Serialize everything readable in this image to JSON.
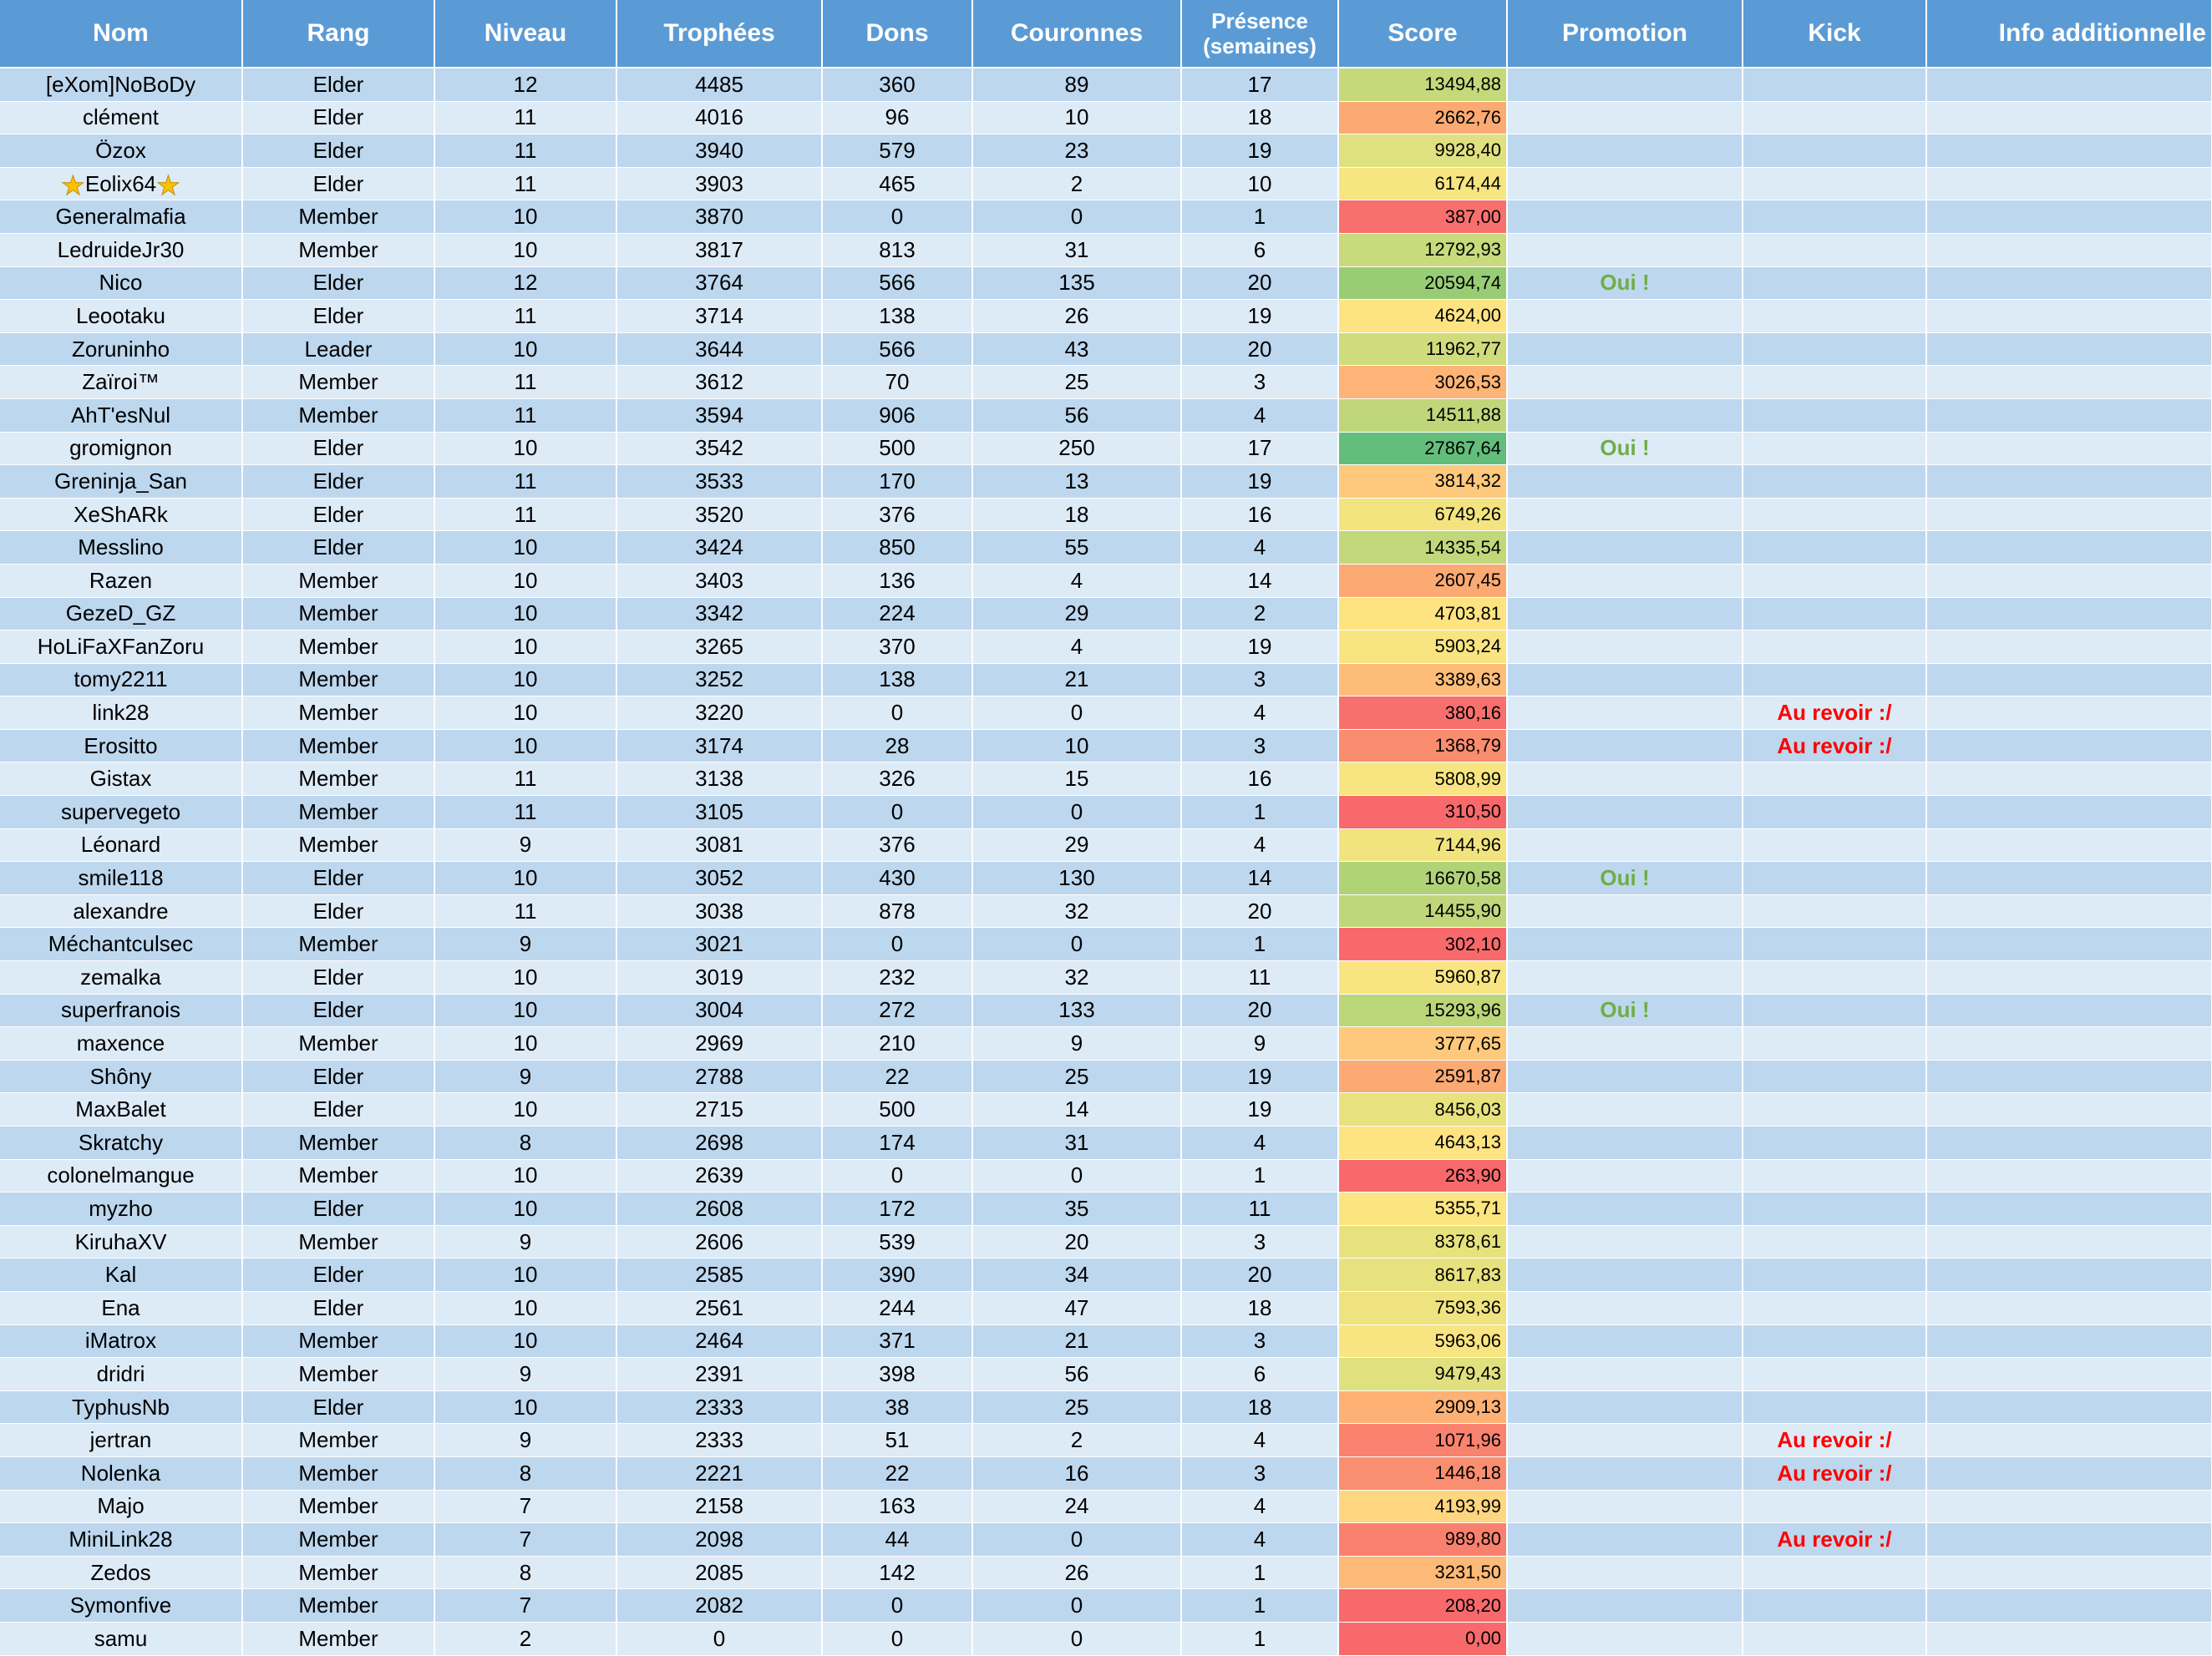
{
  "headers": {
    "nom": "Nom",
    "rang": "Rang",
    "niveau": "Niveau",
    "trophees": "Trophées",
    "dons": "Dons",
    "couronnes": "Couronnes",
    "presence": "Présence",
    "presence_sub": "(semaines)",
    "score": "Score",
    "promotion": "Promotion",
    "kick": "Kick",
    "info": "Info additionnelle"
  },
  "rows": [
    {
      "nom": "[eXom]NoBoDy",
      "rang": "Elder",
      "niveau": "12",
      "trophees": "4485",
      "dons": "360",
      "couronnes": "89",
      "presence": "17",
      "score": "13494,88",
      "score_color": "#c5d97a",
      "promotion": "",
      "kick": ""
    },
    {
      "nom": "clément",
      "rang": "Elder",
      "niveau": "11",
      "trophees": "4016",
      "dons": "96",
      "couronnes": "10",
      "presence": "18",
      "score": "2662,76",
      "score_color": "#fcaa73",
      "promotion": "",
      "kick": ""
    },
    {
      "nom": "Özox",
      "rang": "Elder",
      "niveau": "11",
      "trophees": "3940",
      "dons": "579",
      "couronnes": "23",
      "presence": "19",
      "score": "9928,40",
      "score_color": "#dfe07f",
      "promotion": "",
      "kick": ""
    },
    {
      "nom": "Eolix64",
      "star": true,
      "rang": "Elder",
      "niveau": "11",
      "trophees": "3903",
      "dons": "465",
      "couronnes": "2",
      "presence": "10",
      "score": "6174,44",
      "score_color": "#f6e580",
      "promotion": "",
      "kick": ""
    },
    {
      "nom": "Generalmafia",
      "rang": "Member",
      "niveau": "10",
      "trophees": "3870",
      "dons": "0",
      "couronnes": "0",
      "presence": "1",
      "score": "387,00",
      "score_color": "#f8706d",
      "promotion": "",
      "kick": ""
    },
    {
      "nom": "LedruideJr30",
      "rang": "Member",
      "niveau": "10",
      "trophees": "3817",
      "dons": "813",
      "couronnes": "31",
      "presence": "6",
      "score": "12792,93",
      "score_color": "#c8da7b",
      "promotion": "",
      "kick": ""
    },
    {
      "nom": "Nico",
      "rang": "Elder",
      "niveau": "12",
      "trophees": "3764",
      "dons": "566",
      "couronnes": "135",
      "presence": "20",
      "score": "20594,74",
      "score_color": "#98cd76",
      "promotion": "Oui !",
      "kick": ""
    },
    {
      "nom": "Leootaku",
      "rang": "Elder",
      "niveau": "11",
      "trophees": "3714",
      "dons": "138",
      "couronnes": "26",
      "presence": "19",
      "score": "4624,00",
      "score_color": "#fee382",
      "promotion": "",
      "kick": ""
    },
    {
      "nom": "Zoruninho",
      "rang": "Leader",
      "niveau": "10",
      "trophees": "3644",
      "dons": "566",
      "couronnes": "43",
      "presence": "20",
      "score": "11962,77",
      "score_color": "#cfdc7c",
      "promotion": "",
      "kick": ""
    },
    {
      "nom": "Zaïroi™",
      "rang": "Member",
      "niveau": "11",
      "trophees": "3612",
      "dons": "70",
      "couronnes": "25",
      "presence": "3",
      "score": "3026,53",
      "score_color": "#fdb476",
      "promotion": "",
      "kick": ""
    },
    {
      "nom": "AhT'esNul",
      "rang": "Member",
      "niveau": "11",
      "trophees": "3594",
      "dons": "906",
      "couronnes": "56",
      "presence": "4",
      "score": "14511,88",
      "score_color": "#bfd77a",
      "promotion": "",
      "kick": ""
    },
    {
      "nom": "gromignon",
      "rang": "Elder",
      "niveau": "10",
      "trophees": "3542",
      "dons": "500",
      "couronnes": "250",
      "presence": "17",
      "score": "27867,64",
      "score_color": "#63be7b",
      "promotion": "Oui !",
      "kick": ""
    },
    {
      "nom": "Greninja_San",
      "rang": "Elder",
      "niveau": "11",
      "trophees": "3533",
      "dons": "170",
      "couronnes": "13",
      "presence": "19",
      "score": "3814,32",
      "score_color": "#fec97c",
      "promotion": "",
      "kick": ""
    },
    {
      "nom": "XeShARk",
      "rang": "Elder",
      "niveau": "11",
      "trophees": "3520",
      "dons": "376",
      "couronnes": "18",
      "presence": "16",
      "score": "6749,26",
      "score_color": "#f3e47f",
      "promotion": "",
      "kick": ""
    },
    {
      "nom": "Messlino",
      "rang": "Elder",
      "niveau": "10",
      "trophees": "3424",
      "dons": "850",
      "couronnes": "55",
      "presence": "4",
      "score": "14335,54",
      "score_color": "#c0d87a",
      "promotion": "",
      "kick": ""
    },
    {
      "nom": "Razen",
      "rang": "Member",
      "niveau": "10",
      "trophees": "3403",
      "dons": "136",
      "couronnes": "4",
      "presence": "14",
      "score": "2607,45",
      "score_color": "#fcaa73",
      "promotion": "",
      "kick": ""
    },
    {
      "nom": "GezeD_GZ",
      "rang": "Member",
      "niveau": "10",
      "trophees": "3342",
      "dons": "224",
      "couronnes": "29",
      "presence": "2",
      "score": "4703,81",
      "score_color": "#fee382",
      "promotion": "",
      "kick": ""
    },
    {
      "nom": "HoLiFaXFanZoru",
      "rang": "Member",
      "niveau": "10",
      "trophees": "3265",
      "dons": "370",
      "couronnes": "4",
      "presence": "19",
      "score": "5903,24",
      "score_color": "#f8e581",
      "promotion": "",
      "kick": ""
    },
    {
      "nom": "tomy2211",
      "rang": "Member",
      "niveau": "10",
      "trophees": "3252",
      "dons": "138",
      "couronnes": "21",
      "presence": "3",
      "score": "3389,63",
      "score_color": "#fdbd78",
      "promotion": "",
      "kick": ""
    },
    {
      "nom": "link28",
      "rang": "Member",
      "niveau": "10",
      "trophees": "3220",
      "dons": "0",
      "couronnes": "0",
      "presence": "4",
      "score": "380,16",
      "score_color": "#f8706d",
      "promotion": "",
      "kick": "Au revoir :/"
    },
    {
      "nom": "Erositto",
      "rang": "Member",
      "niveau": "10",
      "trophees": "3174",
      "dons": "28",
      "couronnes": "10",
      "presence": "3",
      "score": "1368,79",
      "score_color": "#fa8c6f",
      "promotion": "",
      "kick": "Au revoir :/"
    },
    {
      "nom": "Gistax",
      "rang": "Member",
      "niveau": "11",
      "trophees": "3138",
      "dons": "326",
      "couronnes": "15",
      "presence": "16",
      "score": "5808,99",
      "score_color": "#f8e581",
      "promotion": "",
      "kick": ""
    },
    {
      "nom": "supervegeto",
      "rang": "Member",
      "niveau": "11",
      "trophees": "3105",
      "dons": "0",
      "couronnes": "0",
      "presence": "1",
      "score": "310,50",
      "score_color": "#f8696b",
      "promotion": "",
      "kick": ""
    },
    {
      "nom": "Léonard",
      "rang": "Member",
      "niveau": "9",
      "trophees": "3081",
      "dons": "376",
      "couronnes": "29",
      "presence": "4",
      "score": "7144,96",
      "score_color": "#f1e47f",
      "promotion": "",
      "kick": ""
    },
    {
      "nom": "smile118",
      "rang": "Elder",
      "niveau": "10",
      "trophees": "3052",
      "dons": "430",
      "couronnes": "130",
      "presence": "14",
      "score": "16670,58",
      "score_color": "#b1d378",
      "promotion": "Oui !",
      "kick": ""
    },
    {
      "nom": "alexandre",
      "rang": "Elder",
      "niveau": "11",
      "trophees": "3038",
      "dons": "878",
      "couronnes": "32",
      "presence": "20",
      "score": "14455,90",
      "score_color": "#bfd77a",
      "promotion": "",
      "kick": ""
    },
    {
      "nom": "Méchantculsec",
      "rang": "Member",
      "niveau": "9",
      "trophees": "3021",
      "dons": "0",
      "couronnes": "0",
      "presence": "1",
      "score": "302,10",
      "score_color": "#f8696b",
      "promotion": "",
      "kick": ""
    },
    {
      "nom": "zemalka",
      "rang": "Elder",
      "niveau": "10",
      "trophees": "3019",
      "dons": "232",
      "couronnes": "32",
      "presence": "11",
      "score": "5960,87",
      "score_color": "#f8e581",
      "promotion": "",
      "kick": ""
    },
    {
      "nom": "superfranois",
      "rang": "Elder",
      "niveau": "10",
      "trophees": "3004",
      "dons": "272",
      "couronnes": "133",
      "presence": "20",
      "score": "15293,96",
      "score_color": "#bbd679",
      "promotion": "Oui !",
      "kick": ""
    },
    {
      "nom": "maxence",
      "rang": "Member",
      "niveau": "10",
      "trophees": "2969",
      "dons": "210",
      "couronnes": "9",
      "presence": "9",
      "score": "3777,65",
      "score_color": "#fec97c",
      "promotion": "",
      "kick": ""
    },
    {
      "nom": "Shôny",
      "rang": "Elder",
      "niveau": "9",
      "trophees": "2788",
      "dons": "22",
      "couronnes": "25",
      "presence": "19",
      "score": "2591,87",
      "score_color": "#fcaa73",
      "promotion": "",
      "kick": ""
    },
    {
      "nom": "MaxBalet",
      "rang": "Elder",
      "niveau": "10",
      "trophees": "2715",
      "dons": "500",
      "couronnes": "14",
      "presence": "19",
      "score": "8456,03",
      "score_color": "#e8e27e",
      "promotion": "",
      "kick": ""
    },
    {
      "nom": "Skratchy",
      "rang": "Member",
      "niveau": "8",
      "trophees": "2698",
      "dons": "174",
      "couronnes": "31",
      "presence": "4",
      "score": "4643,13",
      "score_color": "#fee382",
      "promotion": "",
      "kick": ""
    },
    {
      "nom": "colonelmangue",
      "rang": "Member",
      "niveau": "10",
      "trophees": "2639",
      "dons": "0",
      "couronnes": "0",
      "presence": "1",
      "score": "263,90",
      "score_color": "#f8696b",
      "promotion": "",
      "kick": ""
    },
    {
      "nom": "myzho",
      "rang": "Elder",
      "niveau": "10",
      "trophees": "2608",
      "dons": "172",
      "couronnes": "35",
      "presence": "11",
      "score": "5355,71",
      "score_color": "#fae581",
      "promotion": "",
      "kick": ""
    },
    {
      "nom": "KiruhaXV",
      "rang": "Member",
      "niveau": "9",
      "trophees": "2606",
      "dons": "539",
      "couronnes": "20",
      "presence": "3",
      "score": "8378,61",
      "score_color": "#e8e27e",
      "promotion": "",
      "kick": ""
    },
    {
      "nom": "Kal",
      "rang": "Elder",
      "niveau": "10",
      "trophees": "2585",
      "dons": "390",
      "couronnes": "34",
      "presence": "20",
      "score": "8617,83",
      "score_color": "#e7e27e",
      "promotion": "",
      "kick": ""
    },
    {
      "nom": "Ena",
      "rang": "Elder",
      "niveau": "10",
      "trophees": "2561",
      "dons": "244",
      "couronnes": "47",
      "presence": "18",
      "score": "7593,36",
      "score_color": "#eee37f",
      "promotion": "",
      "kick": ""
    },
    {
      "nom": "iMatrox",
      "rang": "Member",
      "niveau": "10",
      "trophees": "2464",
      "dons": "371",
      "couronnes": "21",
      "presence": "3",
      "score": "5963,06",
      "score_color": "#f8e581",
      "promotion": "",
      "kick": ""
    },
    {
      "nom": "dridri",
      "rang": "Member",
      "niveau": "9",
      "trophees": "2391",
      "dons": "398",
      "couronnes": "56",
      "presence": "6",
      "score": "9479,43",
      "score_color": "#e1e07f",
      "promotion": "",
      "kick": ""
    },
    {
      "nom": "TyphusNb",
      "rang": "Elder",
      "niveau": "10",
      "trophees": "2333",
      "dons": "38",
      "couronnes": "25",
      "presence": "18",
      "score": "2909,13",
      "score_color": "#fdb175",
      "promotion": "",
      "kick": ""
    },
    {
      "nom": "jertran",
      "rang": "Member",
      "niveau": "9",
      "trophees": "2333",
      "dons": "51",
      "couronnes": "2",
      "presence": "4",
      "score": "1071,96",
      "score_color": "#f9836e",
      "promotion": "",
      "kick": "Au revoir :/"
    },
    {
      "nom": "Nolenka",
      "rang": "Member",
      "niveau": "8",
      "trophees": "2221",
      "dons": "22",
      "couronnes": "16",
      "presence": "3",
      "score": "1446,18",
      "score_color": "#fa8e70",
      "promotion": "",
      "kick": "Au revoir :/"
    },
    {
      "nom": "Majo",
      "rang": "Member",
      "niveau": "7",
      "trophees": "2158",
      "dons": "163",
      "couronnes": "24",
      "presence": "4",
      "score": "4193,99",
      "score_color": "#fed680",
      "promotion": "",
      "kick": ""
    },
    {
      "nom": "MiniLink28",
      "rang": "Member",
      "niveau": "7",
      "trophees": "2098",
      "dons": "44",
      "couronnes": "0",
      "presence": "4",
      "score": "989,80",
      "score_color": "#f9806e",
      "promotion": "",
      "kick": "Au revoir :/"
    },
    {
      "nom": "Zedos",
      "rang": "Member",
      "niveau": "8",
      "trophees": "2085",
      "dons": "142",
      "couronnes": "26",
      "presence": "1",
      "score": "3231,50",
      "score_color": "#fdb977",
      "promotion": "",
      "kick": ""
    },
    {
      "nom": "Symonfive",
      "rang": "Member",
      "niveau": "7",
      "trophees": "2082",
      "dons": "0",
      "couronnes": "0",
      "presence": "1",
      "score": "208,20",
      "score_color": "#f8696b",
      "promotion": "",
      "kick": ""
    },
    {
      "nom": "samu",
      "rang": "Member",
      "niveau": "2",
      "trophees": "0",
      "dons": "0",
      "couronnes": "0",
      "presence": "1",
      "score": "0,00",
      "score_color": "#f8696b",
      "promotion": "",
      "kick": ""
    }
  ]
}
